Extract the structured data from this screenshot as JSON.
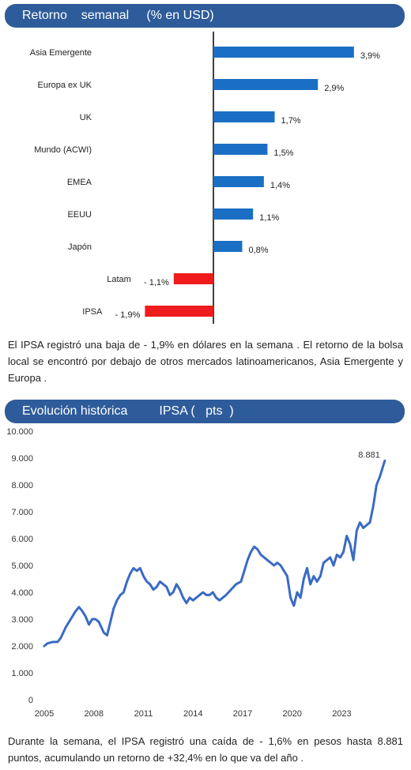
{
  "section1": {
    "header": "Retorno    semanal     (% en USD)",
    "paragraph": "El IPSA registró  una  baja  de  - 1,9% en  dólares   en  la semana   . El retorno   de  la bolsa local  se  encontró  por  debajo  de  otros  mercados  latinoamericanos,   Asia Emergente    y Europa  ."
  },
  "section2": {
    "header": "Evolución histórica         IPSA (   pts  )",
    "paragraph": "Durante  la semana,   el IPSA registró  una  caída  de  - 1,6% en pesos  hasta  8.881 puntos,  acumulando    un retorno  de  +32,4% en lo que  va del año  ."
  },
  "colors": {
    "header_bg": "#2e5c9a",
    "positive_bar": "#1a6fc4",
    "negative_bar": "#ee1c1c",
    "line": "#3a6bc4"
  },
  "chart_data": [
    {
      "type": "bar",
      "orientation": "horizontal",
      "title": "Retorno    semanal     (% en USD)",
      "categories": [
        "Asia Emergente",
        "Europa ex UK",
        "UK",
        "Mundo (ACWI)",
        "EMEA",
        "EEUU",
        "Japón",
        "Latam",
        "IPSA"
      ],
      "values": [
        3.9,
        2.9,
        1.7,
        1.5,
        1.4,
        1.1,
        0.8,
        -1.1,
        -1.9
      ],
      "value_labels": [
        "3,9%",
        "2,9%",
        "1,7%",
        "1,5%",
        "1,4%",
        "1,1%",
        "0,8%",
        "- 1,1%",
        "- 1,9%"
      ],
      "xlim": [
        -2.2,
        4.6
      ],
      "grid": false,
      "zero_line": true
    },
    {
      "type": "line",
      "title": "Evolución histórica         IPSA (   pts  )",
      "x_ticks": [
        "2005",
        "2008",
        "2011",
        "2014",
        "2017",
        "2020",
        "2023"
      ],
      "y_ticks": [
        "0",
        "1.000",
        "2.000",
        "3.000",
        "4.000",
        "5.000",
        "6.000",
        "7.000",
        "8.000",
        "9.000",
        "10.000"
      ],
      "ylim": [
        0,
        10000
      ],
      "xlim": [
        2005,
        2025.8
      ],
      "grid": false,
      "annotation": "8.881",
      "series": [
        {
          "x": [
            2005.0,
            2005.2,
            2005.5,
            2005.8,
            2006.0,
            2006.3,
            2006.6,
            2006.9,
            2007.1,
            2007.3,
            2007.5,
            2007.7,
            2007.9,
            2008.1,
            2008.3,
            2008.6,
            2008.8,
            2009.0,
            2009.2,
            2009.4,
            2009.6,
            2009.8,
            2010.0,
            2010.2,
            2010.4,
            2010.6,
            2010.8,
            2011.0,
            2011.2,
            2011.4,
            2011.6,
            2011.8,
            2012.0,
            2012.2,
            2012.4,
            2012.6,
            2012.8,
            2013.0,
            2013.2,
            2013.4,
            2013.6,
            2013.8,
            2014.0,
            2014.2,
            2014.4,
            2014.6,
            2014.8,
            2015.0,
            2015.2,
            2015.4,
            2015.6,
            2015.8,
            2016.0,
            2016.3,
            2016.6,
            2016.9,
            2017.1,
            2017.3,
            2017.5,
            2017.7,
            2017.9,
            2018.1,
            2018.3,
            2018.5,
            2018.7,
            2018.9,
            2019.1,
            2019.3,
            2019.5,
            2019.7,
            2019.9,
            2020.1,
            2020.3,
            2020.5,
            2020.7,
            2020.9,
            2021.1,
            2021.3,
            2021.5,
            2021.7,
            2021.9,
            2022.1,
            2022.3,
            2022.5,
            2022.7,
            2022.9,
            2023.1,
            2023.3,
            2023.5,
            2023.7,
            2023.9,
            2024.1,
            2024.3,
            2024.5,
            2024.7,
            2024.9,
            2025.1,
            2025.3,
            2025.5,
            2025.6
          ],
          "y": [
            2000,
            2100,
            2150,
            2150,
            2300,
            2700,
            3000,
            3300,
            3450,
            3300,
            3100,
            2800,
            3000,
            3000,
            2900,
            2500,
            2400,
            2900,
            3400,
            3700,
            3900,
            4000,
            4400,
            4700,
            4900,
            4800,
            4900,
            4600,
            4400,
            4300,
            4100,
            4200,
            4400,
            4300,
            4200,
            3900,
            4000,
            4300,
            4100,
            3800,
            3600,
            3800,
            3700,
            3800,
            3900,
            4000,
            3900,
            3900,
            4000,
            3800,
            3700,
            3800,
            3900,
            4100,
            4300,
            4400,
            4800,
            5200,
            5500,
            5700,
            5600,
            5400,
            5300,
            5200,
            5100,
            5000,
            5100,
            5000,
            4800,
            4600,
            3800,
            3500,
            4000,
            3800,
            4500,
            4900,
            4300,
            4600,
            4400,
            4600,
            5100,
            5200,
            5300,
            5000,
            5400,
            5300,
            5500,
            6100,
            5800,
            5200,
            6300,
            6600,
            6400,
            6500,
            6600,
            7200,
            8000,
            8300,
            8700,
            8900
          ]
        }
      ]
    }
  ]
}
